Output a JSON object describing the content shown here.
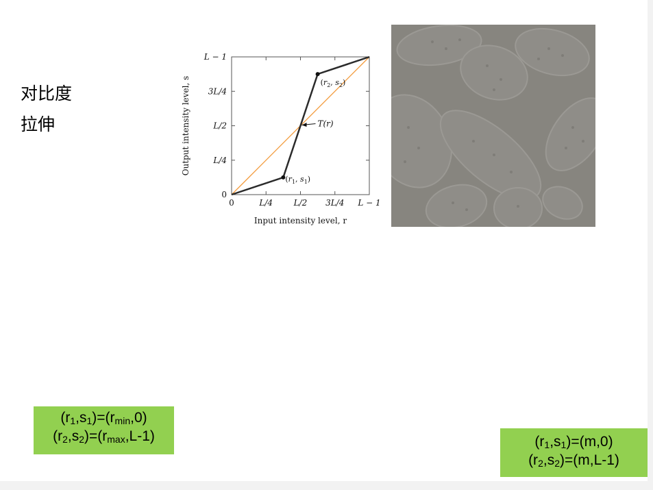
{
  "slide": {
    "title_line1": "对比度",
    "title_line2": "拉伸"
  },
  "chart_data": {
    "type": "line",
    "ylabel": "Output intensity level, s",
    "xlabel": "Input intensity level, r",
    "x_ticks": [
      "0",
      "L/4",
      "L/2",
      "3L/4",
      "L − 1"
    ],
    "y_ticks": [
      "0",
      "L/4",
      "L/2",
      "3L/4",
      "L − 1"
    ],
    "xlim": [
      0,
      1
    ],
    "ylim": [
      0,
      1
    ],
    "series": [
      {
        "name": "T(r)",
        "color": "#2b2b2b",
        "x": [
          0,
          0.375,
          0.625,
          1
        ],
        "y": [
          0,
          0.125,
          0.875,
          1
        ]
      },
      {
        "color": "#f39a3a",
        "x": [
          0,
          1
        ],
        "y": [
          0,
          1
        ]
      }
    ],
    "annotations": {
      "point1": {
        "label_r": "r",
        "label_s": "s",
        "sub": "1",
        "x": 0.375,
        "y": 0.125
      },
      "point2": {
        "label_r": "r",
        "label_s": "s",
        "sub": "2",
        "x": 0.625,
        "y": 0.875
      },
      "curve_label": "T(r)"
    }
  },
  "photo": {
    "icon": "pollen-grains-low-contrast-image",
    "tone": "#8a8883"
  },
  "box_left": {
    "line1": {
      "a": "(r",
      "a_sub": "1",
      "b": ",s",
      "b_sub": "1",
      "c": ")=(r",
      "c_sub": "min",
      "d": ",0)"
    },
    "line2": {
      "a": "(r",
      "a_sub": "2",
      "b": ",s",
      "b_sub": "2",
      "c": ")=(r",
      "c_sub": "max",
      "d": ",L-1)"
    }
  },
  "box_right": {
    "line1": {
      "a": "(r",
      "a_sub": "1",
      "b": ",s",
      "b_sub": "1",
      "c": ")=(m,0)"
    },
    "line2": {
      "a": "(r",
      "a_sub": "2",
      "b": ",s",
      "b_sub": "2",
      "c": ")=(m,L-1)"
    }
  }
}
